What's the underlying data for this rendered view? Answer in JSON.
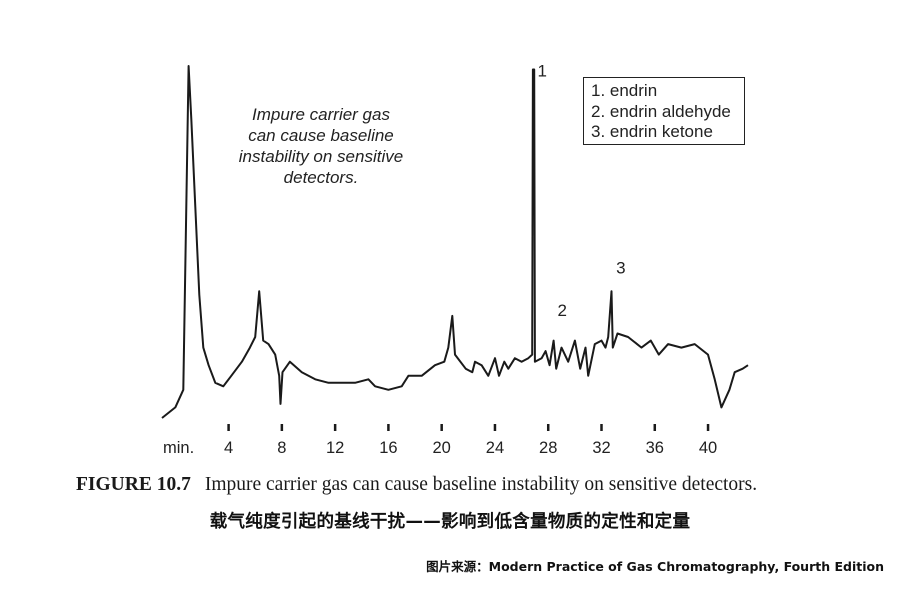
{
  "chart_data": {
    "type": "line",
    "title": "",
    "xlabel": "",
    "ylabel": "",
    "x_unit_label": "min.",
    "xlim": [
      -1,
      43
    ],
    "ylim": [
      0,
      100
    ],
    "x_ticks": [
      4,
      8,
      12,
      16,
      20,
      24,
      28,
      32,
      36,
      40
    ],
    "x_tick_labels": [
      "4",
      "8",
      "12",
      "16",
      "20",
      "24",
      "28",
      "32",
      "36",
      "40"
    ],
    "grid": false,
    "legend": {
      "position": "top-right",
      "entries": [
        "1. endrin",
        "2. endrin aldehyde",
        "3. endrin ketone"
      ]
    },
    "annotation": [
      "Impure carrier gas",
      "can cause baseline",
      "instability on sensitive",
      "detectors."
    ],
    "peak_labels": [
      {
        "label": "1",
        "x": 26.8,
        "y": 97
      },
      {
        "label": "2",
        "x": 28.3,
        "y": 29
      },
      {
        "label": "3",
        "x": 32.7,
        "y": 41
      }
    ],
    "series": [
      {
        "values": [
          [
            -1,
            0
          ],
          [
            0,
            3
          ],
          [
            0.6,
            8
          ],
          [
            1.0,
            100
          ],
          [
            1.2,
            85
          ],
          [
            1.5,
            60
          ],
          [
            1.8,
            35
          ],
          [
            2.1,
            20
          ],
          [
            2.5,
            15
          ],
          [
            3.0,
            10
          ],
          [
            3.6,
            9
          ],
          [
            4.2,
            12
          ],
          [
            5.0,
            16
          ],
          [
            5.6,
            20
          ],
          [
            6.0,
            23
          ],
          [
            6.3,
            36
          ],
          [
            6.6,
            22
          ],
          [
            7.0,
            21
          ],
          [
            7.5,
            18
          ],
          [
            7.8,
            12
          ],
          [
            7.9,
            4
          ],
          [
            8.05,
            13
          ],
          [
            8.6,
            16
          ],
          [
            9.5,
            13
          ],
          [
            10.5,
            11
          ],
          [
            11.5,
            10
          ],
          [
            12.5,
            10
          ],
          [
            13.5,
            10
          ],
          [
            14.5,
            11
          ],
          [
            15.0,
            9
          ],
          [
            16.0,
            8
          ],
          [
            17.0,
            9
          ],
          [
            17.5,
            12
          ],
          [
            18.5,
            12
          ],
          [
            19.5,
            15
          ],
          [
            20.2,
            16
          ],
          [
            20.5,
            20
          ],
          [
            20.8,
            29
          ],
          [
            21.0,
            18
          ],
          [
            21.8,
            14
          ],
          [
            22.3,
            13
          ],
          [
            22.5,
            16
          ],
          [
            23.0,
            15
          ],
          [
            23.5,
            12
          ],
          [
            24.0,
            17
          ],
          [
            24.3,
            12
          ],
          [
            24.7,
            16
          ],
          [
            25.0,
            14
          ],
          [
            25.5,
            17
          ],
          [
            26.0,
            16
          ],
          [
            26.5,
            17
          ],
          [
            26.8,
            18
          ],
          [
            26.85,
            99
          ],
          [
            26.95,
            99
          ],
          [
            27.0,
            16
          ],
          [
            27.5,
            17
          ],
          [
            27.8,
            19
          ],
          [
            28.1,
            15
          ],
          [
            28.4,
            22
          ],
          [
            28.6,
            14
          ],
          [
            29.0,
            20
          ],
          [
            29.5,
            16
          ],
          [
            30.0,
            22
          ],
          [
            30.4,
            14
          ],
          [
            30.8,
            20
          ],
          [
            31.0,
            12
          ],
          [
            31.5,
            21
          ],
          [
            32.0,
            22
          ],
          [
            32.3,
            20
          ],
          [
            32.5,
            23
          ],
          [
            32.75,
            36
          ],
          [
            32.85,
            20
          ],
          [
            33.2,
            24
          ],
          [
            34.0,
            23
          ],
          [
            35.0,
            20
          ],
          [
            35.7,
            22
          ],
          [
            36.3,
            18
          ],
          [
            37.0,
            21
          ],
          [
            38.0,
            20
          ],
          [
            39.0,
            21
          ],
          [
            40.0,
            18
          ],
          [
            40.5,
            11
          ],
          [
            41.0,
            3
          ],
          [
            41.6,
            8
          ],
          [
            42.0,
            13
          ],
          [
            42.6,
            14
          ],
          [
            43.0,
            15
          ]
        ]
      }
    ]
  },
  "figure": {
    "caption_number": "FIGURE 10.7",
    "caption_text": "Impure carrier gas can cause baseline instability on sensitive detectors.",
    "caption_zh": "载气纯度引起的基线干扰——影响到低含量物质的定性和定量",
    "source": "图片来源：Modern Practice of Gas Chromatography, Fourth Edition"
  }
}
